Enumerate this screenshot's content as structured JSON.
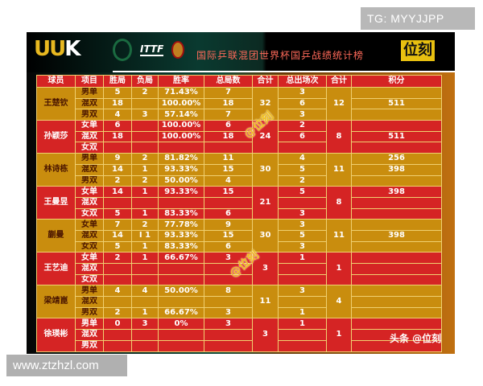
{
  "watermark_top": "TG: MYYJJPP",
  "watermark_bottom": "www.ztzhzl.com",
  "logo": {
    "left": "UU",
    "right": "K"
  },
  "title": "国际乒联混团世界杯国乒战绩统计榜",
  "brand": "位刻",
  "overlay_marks": [
    "@位刻",
    "@位刻"
  ],
  "source_tag": "头条 @位刻",
  "colors": {
    "gold": "#c98d0e",
    "red": "#d52424"
  },
  "headers": [
    "球员",
    "项目",
    "胜局",
    "负局",
    "胜率",
    "总局数",
    "合计",
    "总出场次",
    "合计",
    "积分"
  ],
  "players": [
    {
      "name": "王楚钦",
      "color": "g",
      "total_games": "32",
      "total_apps": "12",
      "rows": [
        [
          "男单",
          "5",
          "2",
          "71.43%",
          "7",
          "3",
          ""
        ],
        [
          "混双",
          "18",
          "",
          "100.00%",
          "18",
          "6",
          "511"
        ],
        [
          "男双",
          "4",
          "3",
          "57.14%",
          "7",
          "3",
          ""
        ]
      ]
    },
    {
      "name": "孙颖莎",
      "color": "r",
      "total_games": "24",
      "total_apps": "8",
      "rows": [
        [
          "女单",
          "6",
          "",
          "100.00%",
          "6",
          "2",
          ""
        ],
        [
          "混双",
          "18",
          "",
          "100.00%",
          "18",
          "6",
          "511"
        ],
        [
          "女双",
          "",
          "",
          "",
          "",
          "",
          ""
        ]
      ]
    },
    {
      "name": "林诗栋",
      "color": "g",
      "total_games": "30",
      "total_apps": "11",
      "rows": [
        [
          "男单",
          "9",
          "2",
          "81.82%",
          "11",
          "4",
          "256"
        ],
        [
          "混双",
          "14",
          "1",
          "93.33%",
          "15",
          "5",
          "398"
        ],
        [
          "男双",
          "2",
          "2",
          "50.00%",
          "4",
          "2",
          ""
        ]
      ]
    },
    {
      "name": "王曼昱",
      "color": "r",
      "total_games": "21",
      "total_apps": "8",
      "rows": [
        [
          "女单",
          "14",
          "1",
          "93.33%",
          "15",
          "5",
          "398"
        ],
        [
          "混双",
          "",
          "",
          "",
          "",
          "",
          ""
        ],
        [
          "女双",
          "5",
          "1",
          "83.33%",
          "6",
          "3",
          ""
        ]
      ]
    },
    {
      "name": "蒯曼",
      "color": "g",
      "total_games": "30",
      "total_apps": "11",
      "rows": [
        [
          "女单",
          "7",
          "2",
          "77.78%",
          "9",
          "3",
          ""
        ],
        [
          "混双",
          "14",
          "I 1",
          "93.33%",
          "15",
          "5",
          "398"
        ],
        [
          "女双",
          "5",
          "1",
          "83.33%",
          "6",
          "3",
          ""
        ]
      ]
    },
    {
      "name": "王艺迪",
      "color": "r",
      "total_games": "3",
      "total_apps": "1",
      "rows": [
        [
          "女单",
          "2",
          "1",
          "66.67%",
          "3",
          "1",
          ""
        ],
        [
          "混双",
          "",
          "",
          "",
          "",
          "",
          ""
        ],
        [
          "女双",
          "",
          "",
          "",
          "",
          "",
          ""
        ]
      ]
    },
    {
      "name": "梁靖崑",
      "color": "g",
      "total_games": "11",
      "total_apps": "4",
      "rows": [
        [
          "男单",
          "4",
          "4",
          "50.00%",
          "8",
          "3",
          ""
        ],
        [
          "混双",
          "",
          "",
          "",
          "",
          "",
          ""
        ],
        [
          "男双",
          "2",
          "1",
          "66.67%",
          "3",
          "1",
          ""
        ]
      ]
    },
    {
      "name": "徐瑛彬",
      "color": "r",
      "total_games": "3",
      "total_apps": "1",
      "rows": [
        [
          "男单",
          "0",
          "3",
          "0%",
          "3",
          "1",
          ""
        ],
        [
          "混双",
          "",
          "",
          "",
          "",
          "",
          ""
        ],
        [
          "男双",
          "",
          "",
          "",
          "",
          "",
          ""
        ]
      ]
    }
  ]
}
